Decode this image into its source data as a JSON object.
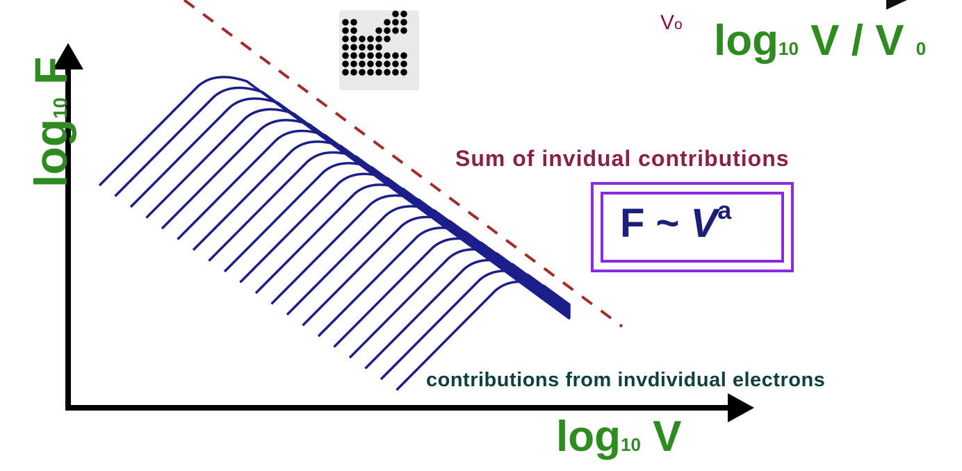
{
  "axes": {
    "y_label_main": "log",
    "y_label_sub": "10",
    "y_label_var": " F",
    "x_label_main": "log",
    "x_label_sub": "10",
    "x_label_var": " V"
  },
  "top_right": {
    "v0_small": "V",
    "v0_small_sub": "o",
    "label_main": "log",
    "label_sub": "10",
    "label_var": " V / V ",
    "label_var_sub": "0"
  },
  "annotations": {
    "sum_label": "Sum of invidual contributions",
    "contrib_label": "contributions from invdividual electrons"
  },
  "formula": {
    "lhs": "F",
    "op": " ~ ",
    "rhs": "V",
    "exponent": "a"
  },
  "colors": {
    "axis": "#000000",
    "curves": "#1c1f8a",
    "dashed_line": "#a52a2a",
    "label_green": "#2e8b1f",
    "box": "#8a2be2"
  },
  "icons": [
    "dot-matrix-icon",
    "arrow-icon"
  ],
  "curve_count": 20
}
